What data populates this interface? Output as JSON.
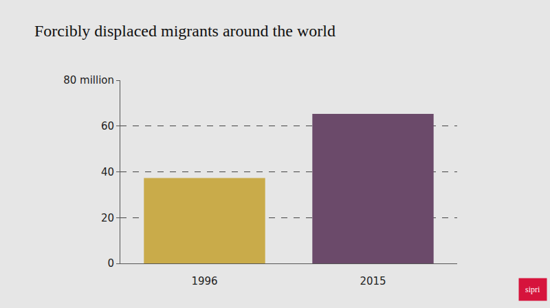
{
  "chart_data": {
    "type": "bar",
    "title": "Forcibly displaced migrants around the world",
    "categories": [
      "1996",
      "2015"
    ],
    "values": [
      37.3,
      65.3
    ],
    "colors": [
      "#c9ab4a",
      "#6b4a6a"
    ],
    "ylim": [
      0,
      80
    ],
    "yticks": [
      0,
      20,
      40,
      60,
      {
        "value": 80,
        "label": "80 million"
      }
    ],
    "grid": true,
    "annotations": [
      "sipri"
    ]
  }
}
